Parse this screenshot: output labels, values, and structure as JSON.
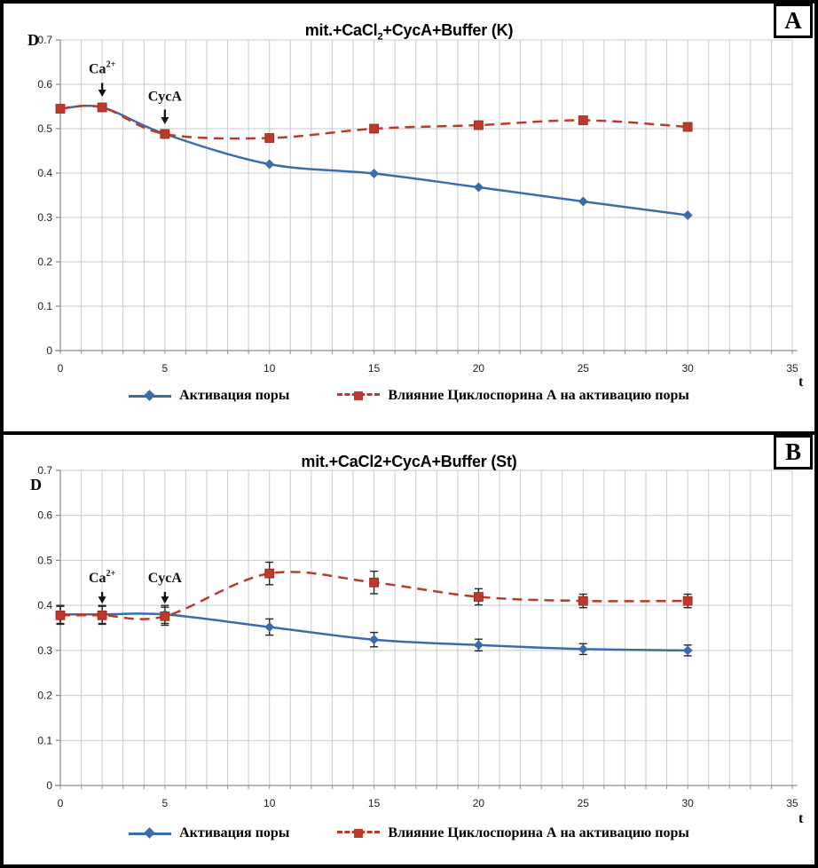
{
  "chart_data": [
    {
      "panel": "A",
      "badge": "A",
      "type": "line",
      "title_parts": [
        {
          "text": "mit.+CaCl"
        },
        {
          "text": "2",
          "sub": true
        },
        {
          "text": "+CycA+Buffer (K)"
        }
      ],
      "title_plain": "mit.+CaCl2+CycA+Buffer (K)",
      "xlabel": "t",
      "ylabel": "D",
      "xlim": [
        0,
        35
      ],
      "ylim": [
        0,
        0.7
      ],
      "xticks": [
        0,
        5,
        10,
        15,
        20,
        25,
        30,
        35
      ],
      "yticks": [
        0,
        0.1,
        0.2,
        0.3,
        0.4,
        0.5,
        0.6,
        0.7
      ],
      "x_minor_step": 1,
      "grid": true,
      "legend_position": "bottom-center",
      "x": [
        0,
        2,
        5,
        10,
        15,
        20,
        25,
        30
      ],
      "series": [
        {
          "name": "Активация поры",
          "color": "#3a6cab",
          "line": "solid",
          "marker": "diamond",
          "values": [
            0.545,
            0.548,
            0.488,
            0.42,
            0.399,
            0.368,
            0.336,
            0.305
          ],
          "errors": null
        },
        {
          "name": "Влияние Циклоспорина А на активацию поры",
          "color": "#bd3a2a",
          "line": "dashed",
          "marker": "square",
          "values": [
            0.545,
            0.548,
            0.488,
            0.479,
            0.5,
            0.508,
            0.519,
            0.504
          ],
          "errors": null
        }
      ],
      "annotations": [
        {
          "parts": [
            {
              "text": "Ca"
            },
            {
              "text": "2+",
              "sup": true
            }
          ],
          "x": 2,
          "text_y": 0.625,
          "arrow_from": 0.603,
          "arrow_to": 0.572
        },
        {
          "parts": [
            {
              "text": "CycA"
            }
          ],
          "x": 5,
          "text_y": 0.563,
          "arrow_from": 0.543,
          "arrow_to": 0.51
        }
      ]
    },
    {
      "panel": "B",
      "badge": "B",
      "type": "line",
      "title_parts": [
        {
          "text": "mit.+CaCl2+CycA+Buffer (St)"
        }
      ],
      "title_plain": "mit.+CaCl2+CycA+Buffer (St)",
      "xlabel": "t",
      "ylabel": "D",
      "xlim": [
        0,
        35
      ],
      "ylim": [
        0,
        0.7
      ],
      "xticks": [
        0,
        5,
        10,
        15,
        20,
        25,
        30,
        35
      ],
      "yticks": [
        0,
        0.1,
        0.2,
        0.3,
        0.4,
        0.5,
        0.6,
        0.7
      ],
      "x_minor_step": 1,
      "grid": true,
      "legend_position": "bottom-center",
      "x": [
        0,
        2,
        5,
        10,
        15,
        20,
        25,
        30
      ],
      "series": [
        {
          "name": "Активация поры",
          "color": "#3a6cab",
          "line": "solid",
          "marker": "diamond",
          "values": [
            0.38,
            0.38,
            0.38,
            0.352,
            0.324,
            0.312,
            0.303,
            0.3
          ],
          "errors": [
            0.02,
            0.02,
            0.02,
            0.018,
            0.016,
            0.013,
            0.012,
            0.012
          ]
        },
        {
          "name": "Влияние Циклоспорина А на активацию поры",
          "color": "#bd3a2a",
          "line": "dashed",
          "marker": "square",
          "values": [
            0.378,
            0.378,
            0.376,
            0.471,
            0.451,
            0.419,
            0.41,
            0.41
          ],
          "errors": [
            0.02,
            0.02,
            0.02,
            0.025,
            0.025,
            0.018,
            0.015,
            0.015
          ]
        }
      ],
      "annotations": [
        {
          "parts": [
            {
              "text": "Ca"
            },
            {
              "text": "2+",
              "sup": true
            }
          ],
          "x": 2,
          "text_y": 0.452,
          "arrow_from": 0.43,
          "arrow_to": 0.404
        },
        {
          "parts": [
            {
              "text": "CycA"
            }
          ],
          "x": 5,
          "text_y": 0.452,
          "arrow_from": 0.43,
          "arrow_to": 0.404
        }
      ]
    }
  ],
  "colors": {
    "series_blue": "#3a6cab",
    "series_red": "#bd3a2a",
    "gridline": "#c7cace",
    "axis": "#8e8e8e",
    "error_bar": "#262626",
    "annotation": "#111111"
  }
}
